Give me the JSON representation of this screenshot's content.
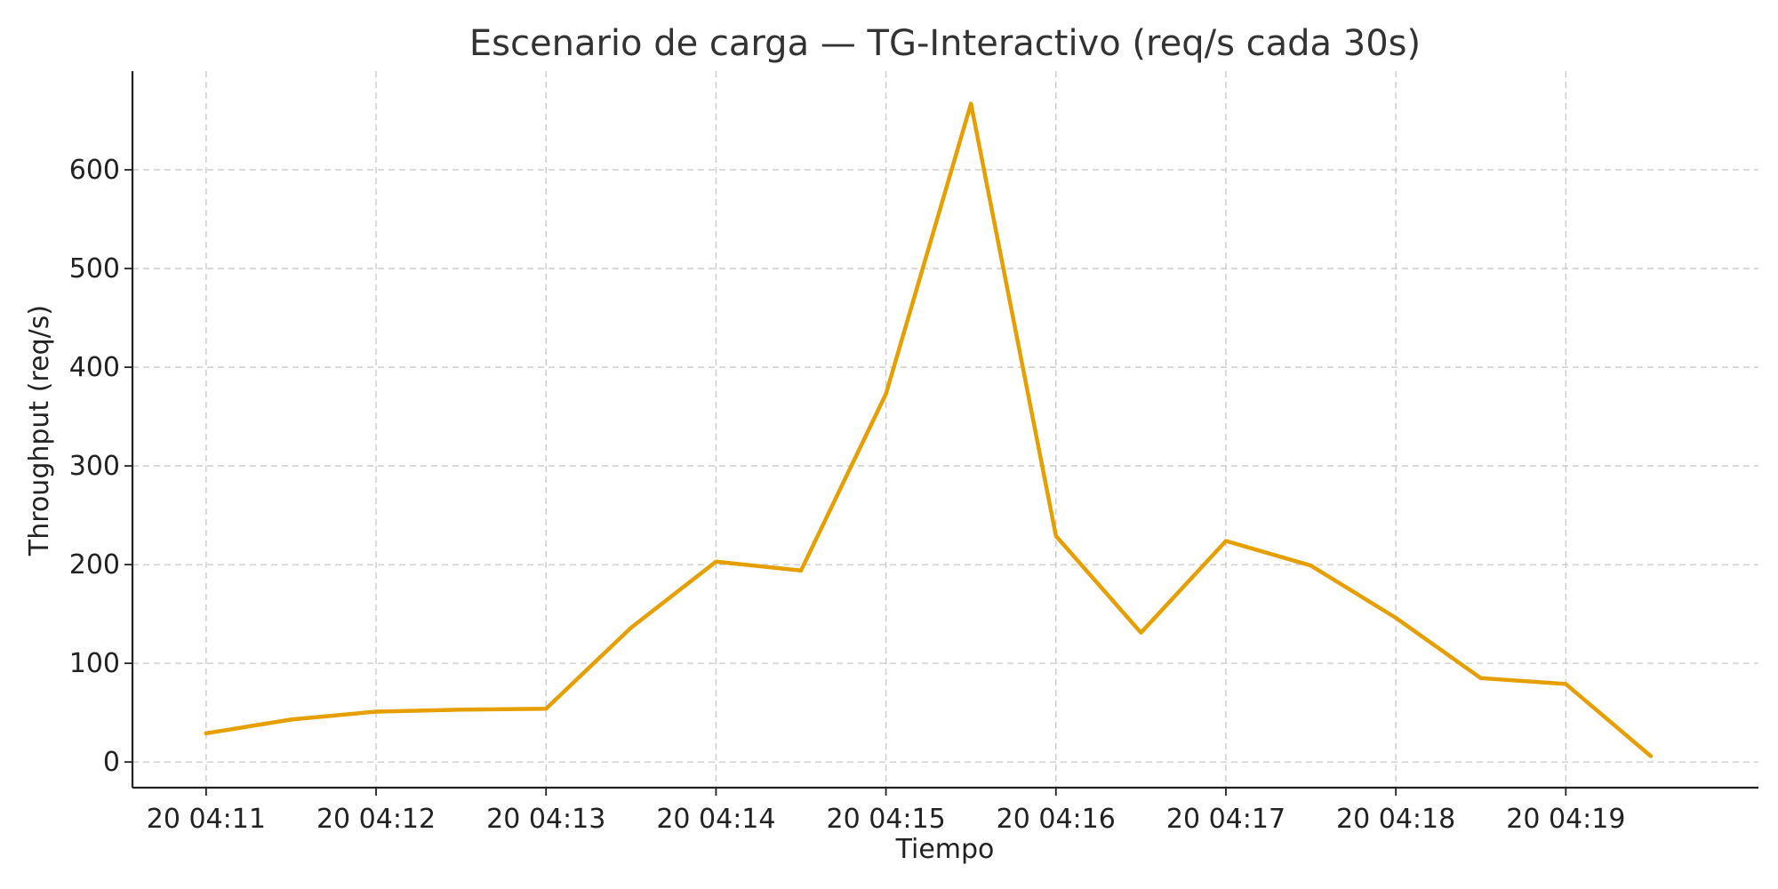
{
  "chart_data": {
    "type": "line",
    "title": "Escenario de carga — TG-Interactivo (req/s cada 30s)",
    "xlabel": "Tiempo",
    "ylabel": "Throughput (req/s)",
    "x_ticks": [
      "20 04:11",
      "20 04:12",
      "20 04:13",
      "20 04:14",
      "20 04:15",
      "20 04:16",
      "20 04:17",
      "20 04:18",
      "20 04:19"
    ],
    "y_ticks": [
      0,
      100,
      200,
      300,
      400,
      500,
      600
    ],
    "xlim": [
      "20 04:10:34",
      "20 04:20:08"
    ],
    "ylim": [
      -26,
      700
    ],
    "grid": true,
    "line_color": "#E69F00",
    "series": [
      {
        "x": [
          "20 04:11:00",
          "20 04:11:30",
          "20 04:12:00",
          "20 04:12:30",
          "20 04:13:00",
          "20 04:13:30",
          "20 04:14:00",
          "20 04:14:30",
          "20 04:15:00",
          "20 04:15:30",
          "20 04:16:00",
          "20 04:16:30",
          "20 04:17:00",
          "20 04:17:30",
          "20 04:18:00",
          "20 04:18:30",
          "20 04:19:00",
          "20 04:19:30"
        ],
        "values": [
          29,
          43,
          51,
          53,
          54,
          136,
          203,
          194,
          373,
          667,
          229,
          131,
          224,
          199,
          146,
          85,
          79,
          6
        ]
      }
    ]
  }
}
